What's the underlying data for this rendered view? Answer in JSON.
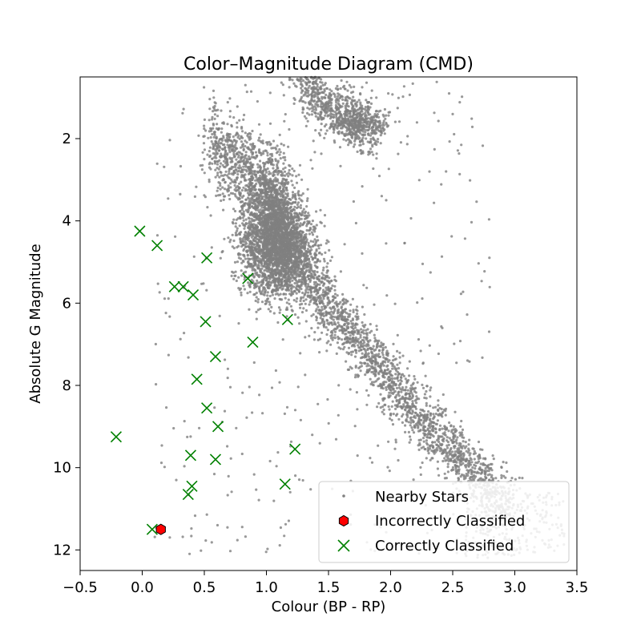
{
  "chart_data": {
    "type": "scatter",
    "title": "Color–Magnitude Diagram (CMD)",
    "xlabel": "Colour (BP - RP)",
    "ylabel": "Absolute G Magnitude",
    "xlim": [
      -0.5,
      3.5
    ],
    "ylim": [
      12.5,
      0.5
    ],
    "y_inverted": true,
    "grid": false,
    "legend_placement": "lower-right",
    "x_ticks": [
      -0.5,
      0.0,
      0.5,
      1.0,
      1.5,
      2.0,
      2.5,
      3.0,
      3.5
    ],
    "x_tick_labels": [
      "−0.5",
      "0.0",
      "0.5",
      "1.0",
      "1.5",
      "2.0",
      "2.5",
      "3.0",
      "3.5"
    ],
    "y_ticks": [
      2,
      4,
      6,
      8,
      10,
      12
    ],
    "y_tick_labels": [
      "2",
      "4",
      "6",
      "8",
      "10",
      "12"
    ],
    "series": [
      {
        "name": "Nearby Stars",
        "marker": "dot",
        "color": "#808080",
        "points": "dense main-sequence and giant-branch distribution of several thousand stars"
      },
      {
        "name": "Incorrectly Classified",
        "marker": "hexagon",
        "color": "#ff0000",
        "edgecolor": "#000000",
        "points": [
          [
            0.15,
            11.5
          ]
        ]
      },
      {
        "name": "Correctly Classified",
        "marker": "x",
        "color": "#008000",
        "points": [
          [
            -0.02,
            4.25
          ],
          [
            0.12,
            4.6
          ],
          [
            0.52,
            4.9
          ],
          [
            0.85,
            5.4
          ],
          [
            0.26,
            5.6
          ],
          [
            0.33,
            5.6
          ],
          [
            0.41,
            5.8
          ],
          [
            0.51,
            6.45
          ],
          [
            1.17,
            6.4
          ],
          [
            0.89,
            6.95
          ],
          [
            0.59,
            7.3
          ],
          [
            0.44,
            7.85
          ],
          [
            0.52,
            8.55
          ],
          [
            0.61,
            9.0
          ],
          [
            -0.21,
            9.25
          ],
          [
            0.39,
            9.7
          ],
          [
            0.59,
            9.8
          ],
          [
            1.23,
            9.55
          ],
          [
            1.15,
            10.4
          ],
          [
            0.4,
            10.45
          ],
          [
            0.37,
            10.65
          ],
          [
            0.08,
            11.5
          ]
        ]
      }
    ]
  }
}
